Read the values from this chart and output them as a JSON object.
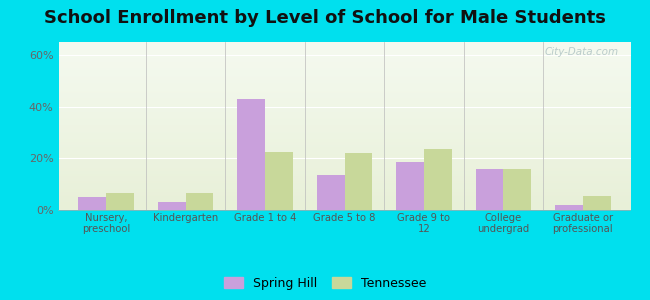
{
  "title": "School Enrollment by Level of School for Male Students",
  "categories": [
    "Nursery,\npreschool",
    "Kindergarten",
    "Grade 1 to 4",
    "Grade 5 to 8",
    "Grade 9 to\n12",
    "College\nundergrad",
    "Graduate or\nprofessional"
  ],
  "spring_hill": [
    5.0,
    3.0,
    43.0,
    13.5,
    18.5,
    16.0,
    2.0
  ],
  "tennessee": [
    6.5,
    6.5,
    22.5,
    22.0,
    23.5,
    16.0,
    5.5
  ],
  "spring_hill_color": "#c9a0dc",
  "tennessee_color": "#c8d89a",
  "background_outer": "#00e0ee",
  "title_fontsize": 13,
  "ylabel_ticks": [
    "0%",
    "20%",
    "40%",
    "60%"
  ],
  "ytick_vals": [
    0,
    20,
    40,
    60
  ],
  "ylim": [
    0,
    65
  ],
  "bar_width": 0.35,
  "legend_labels": [
    "Spring Hill",
    "Tennessee"
  ],
  "watermark": "City-Data.com"
}
